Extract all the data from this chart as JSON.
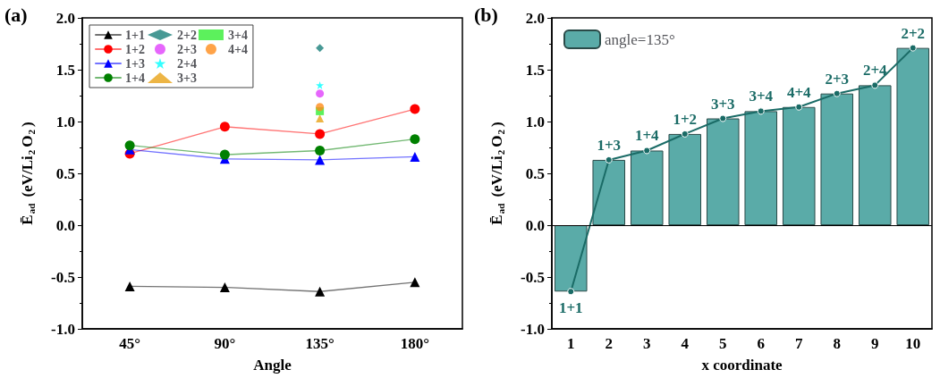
{
  "chart_data": [
    {
      "type": "line",
      "title": "(a)",
      "xlabel": "Angle",
      "ylabel": "Ē$_{ad}$ (eV/Li$_{2}$O$_{2}$)",
      "categories": [
        "45°",
        "90°",
        "135°",
        "180°"
      ],
      "ylim": [
        -1,
        2
      ],
      "yticks": [
        {
          "value": -1,
          "label": "-1.0"
        },
        {
          "value": -0.5,
          "label": "-0.5"
        },
        {
          "value": 0,
          "label": "0.0"
        },
        {
          "value": 0.5,
          "label": "0.5"
        },
        {
          "value": 1,
          "label": "1.0"
        },
        {
          "value": 1.5,
          "label": "1.5"
        },
        {
          "value": 2,
          "label": "2.0"
        }
      ],
      "grid": false,
      "legend": "top left",
      "line_style": "solid",
      "series": [
        {
          "name": "1+1",
          "color": "#000000",
          "marker": "triangle",
          "values": [
            -0.59,
            -0.6,
            -0.64,
            -0.55
          ]
        },
        {
          "name": "1+2",
          "color": "#ff0000",
          "marker": "circle",
          "values": [
            0.69,
            0.95,
            0.88,
            1.12
          ]
        },
        {
          "name": "1+3",
          "color": "#0000ff",
          "marker": "triangle",
          "values": [
            0.73,
            0.64,
            0.63,
            0.66
          ]
        },
        {
          "name": "1+4",
          "color": "#008000",
          "marker": "circle",
          "values": [
            0.77,
            0.68,
            0.72,
            0.83
          ]
        },
        {
          "name": "2+2",
          "type": "scatter",
          "color": "#1a7f7a",
          "marker": "diamond",
          "x": [
            "135°"
          ],
          "values": [
            1.71
          ]
        },
        {
          "name": "2+3",
          "type": "scatter",
          "color": "#e040fb",
          "marker": "circle",
          "x": [
            "135°"
          ],
          "values": [
            1.27
          ]
        },
        {
          "name": "2+4",
          "type": "scatter",
          "color": "#00ffff",
          "marker": "star",
          "x": [
            "135°"
          ],
          "values": [
            1.35
          ]
        },
        {
          "name": "3+3",
          "type": "scatter",
          "color": "#e8a317",
          "marker": "triangle",
          "x": [
            "135°"
          ],
          "values": [
            1.03
          ]
        },
        {
          "name": "3+4",
          "type": "scatter",
          "color": "#33ee33",
          "marker": "square",
          "x": [
            "135°"
          ],
          "values": [
            1.1
          ]
        },
        {
          "name": "4+4",
          "type": "scatter",
          "color": "#ff8c1a",
          "marker": "circle",
          "x": [
            "135°"
          ],
          "values": [
            1.14
          ]
        }
      ]
    },
    {
      "type": "bar",
      "title": "(b)",
      "xlabel": "x coordinate",
      "ylabel": "Ē$_{ad}$ (eV/Li$_{2}$O$_{2}$)",
      "categories": [
        "1",
        "2",
        "3",
        "4",
        "5",
        "6",
        "7",
        "8",
        "9",
        "10"
      ],
      "ylim": [
        -1,
        2
      ],
      "yticks": [
        {
          "value": -1,
          "label": "-1.0"
        },
        {
          "value": -0.5,
          "label": "-0.5"
        },
        {
          "value": 0,
          "label": "0.0"
        },
        {
          "value": 0.5,
          "label": "0.5"
        },
        {
          "value": 1,
          "label": "1.0"
        },
        {
          "value": 1.5,
          "label": "1.5"
        },
        {
          "value": 2,
          "label": "2.0"
        }
      ],
      "grid": false,
      "legend": "top left",
      "ref_lines": [
        {
          "axis": "y",
          "value": 0
        }
      ],
      "series": [
        {
          "name": "angle=135°",
          "color": "#5aaba8",
          "values": [
            -0.64,
            0.63,
            0.72,
            0.88,
            1.03,
            1.1,
            1.14,
            1.27,
            1.35,
            1.71
          ]
        },
        {
          "type": "line",
          "color": "#1a6b66",
          "marker": "circle",
          "line_style": "solid",
          "values": [
            -0.64,
            0.63,
            0.72,
            0.88,
            1.03,
            1.1,
            1.14,
            1.27,
            1.35,
            1.71
          ]
        }
      ],
      "annotations": [
        {
          "text": "1+1",
          "x": "1",
          "y": -0.64
        },
        {
          "text": "1+3",
          "x": "2",
          "y": 0.63
        },
        {
          "text": "1+4",
          "x": "3",
          "y": 0.72
        },
        {
          "text": "1+2",
          "x": "4",
          "y": 0.88
        },
        {
          "text": "3+3",
          "x": "5",
          "y": 1.03
        },
        {
          "text": "3+4",
          "x": "6",
          "y": 1.1
        },
        {
          "text": "4+4",
          "x": "7",
          "y": 1.14
        },
        {
          "text": "2+3",
          "x": "8",
          "y": 1.27
        },
        {
          "text": "2+4",
          "x": "9",
          "y": 1.35
        },
        {
          "text": "2+2",
          "x": "10",
          "y": 1.71
        }
      ]
    }
  ]
}
